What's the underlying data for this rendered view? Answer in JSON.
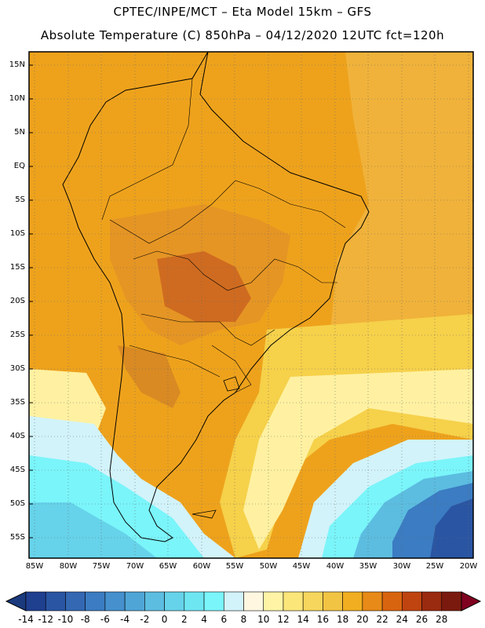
{
  "header": {
    "title_line1": "CPTEC/INPE/MCT –  Eta Model 15km – GFS",
    "title_line2": "Absolute Temperature (C) 850hPa – 04/12/2020 12UTC fct=120h"
  },
  "axes": {
    "lat_labels": [
      "15N",
      "10N",
      "5N",
      "EQ",
      "5S",
      "10S",
      "15S",
      "20S",
      "25S",
      "30S",
      "35S",
      "40S",
      "45S",
      "50S",
      "55S"
    ],
    "lon_labels": [
      "85W",
      "80W",
      "75W",
      "70W",
      "65W",
      "60W",
      "55W",
      "50W",
      "45W",
      "40W",
      "35W",
      "30W",
      "25W",
      "20W"
    ]
  },
  "colorbar": {
    "tick_labels": [
      "-14",
      "-12",
      "-10",
      "-8",
      "-6",
      "-4",
      "-2",
      "0",
      "2",
      "4",
      "6",
      "8",
      "10",
      "12",
      "14",
      "16",
      "18",
      "20",
      "22",
      "24",
      "26",
      "28"
    ],
    "colors": [
      "#1f3f8f",
      "#2a55a3",
      "#3468b3",
      "#3b7cc2",
      "#4590cd",
      "#4fa6d6",
      "#5cbde0",
      "#66d3ea",
      "#6ee6f2",
      "#7af5fa",
      "#d2f3fa",
      "#fff7e0",
      "#fff4a6",
      "#fbe67a",
      "#f6d65c",
      "#f2c444",
      "#f0ae20",
      "#e88a18",
      "#d9640f",
      "#bf4410",
      "#9a2a10",
      "#7a1a0e"
    ],
    "under_color": "#1a3a7d",
    "over_color": "#800020"
  },
  "map": {
    "projection_note": "lat/lon",
    "colors": {
      "land_warm": "#eea21c",
      "hot": "#d98a22",
      "very_hot": "#cf6b20",
      "yellow": "#f6d14a",
      "pale": "#fff1a1",
      "cream": "#fff7e0",
      "cyan_light": "#d2f3fa",
      "cyan": "#7af5fa",
      "teal": "#5cbde0",
      "blue": "#3b7cc2",
      "deep_blue": "#2a55a3"
    }
  }
}
